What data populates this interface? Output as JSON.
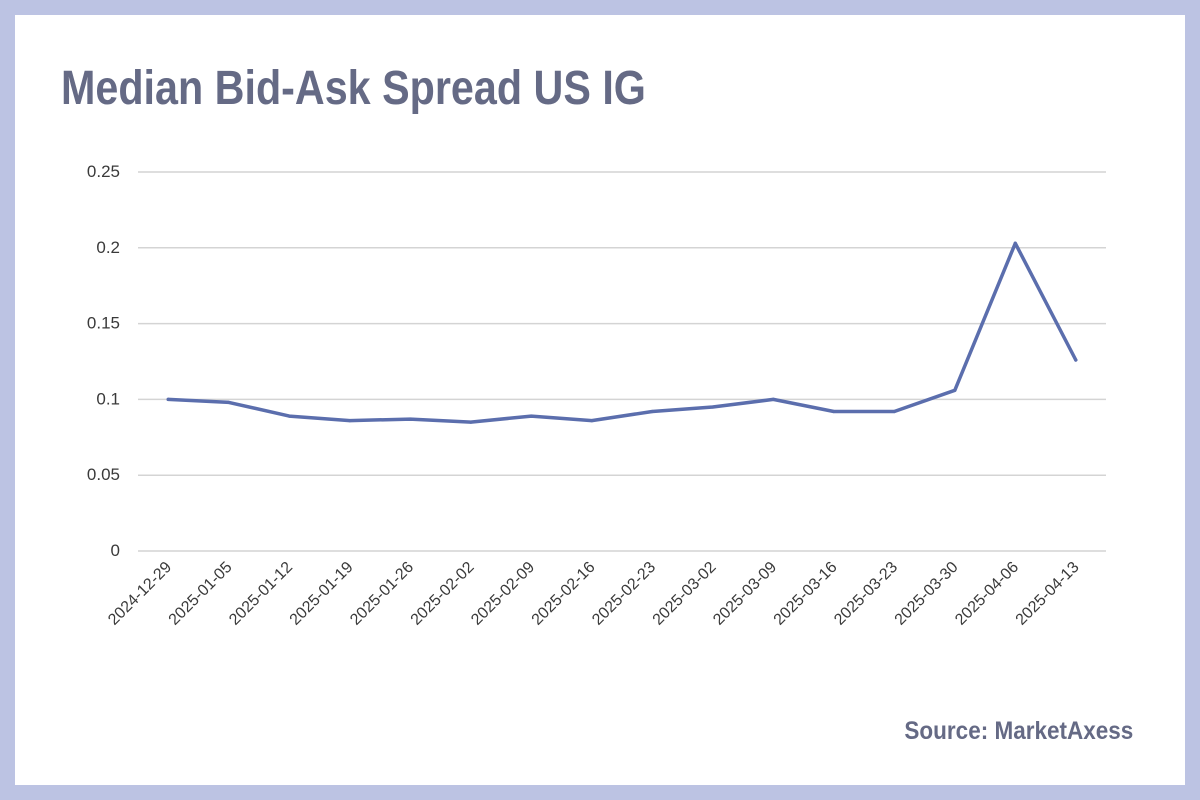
{
  "colors": {
    "background": "#bcc3e3",
    "card": "#ffffff",
    "title": "#656a85",
    "line": "#5b6ead",
    "grid": "#d4d4d4",
    "tick_text": "#3a3a3a"
  },
  "source": "Source: MarketAxess",
  "chart_data": {
    "type": "line",
    "title": "Median Bid-Ask Spread US IG",
    "xlabel": "",
    "ylabel": "",
    "ylim": [
      0,
      0.25
    ],
    "y_ticks": [
      "0",
      "0.05",
      "0.1",
      "0.15",
      "0.2",
      "0.25"
    ],
    "grid": true,
    "legend": "none",
    "categories": [
      "2024-12-29",
      "2025-01-05",
      "2025-01-12",
      "2025-01-19",
      "2025-01-26",
      "2025-02-02",
      "2025-02-09",
      "2025-02-16",
      "2025-02-23",
      "2025-03-02",
      "2025-03-09",
      "2025-03-16",
      "2025-03-23",
      "2025-03-30",
      "2025-04-06",
      "2025-04-13"
    ],
    "series": [
      {
        "values": [
          0.1,
          0.098,
          0.089,
          0.086,
          0.087,
          0.085,
          0.089,
          0.086,
          0.092,
          0.095,
          0.1,
          0.092,
          0.092,
          0.106,
          0.203,
          0.126
        ]
      }
    ]
  }
}
